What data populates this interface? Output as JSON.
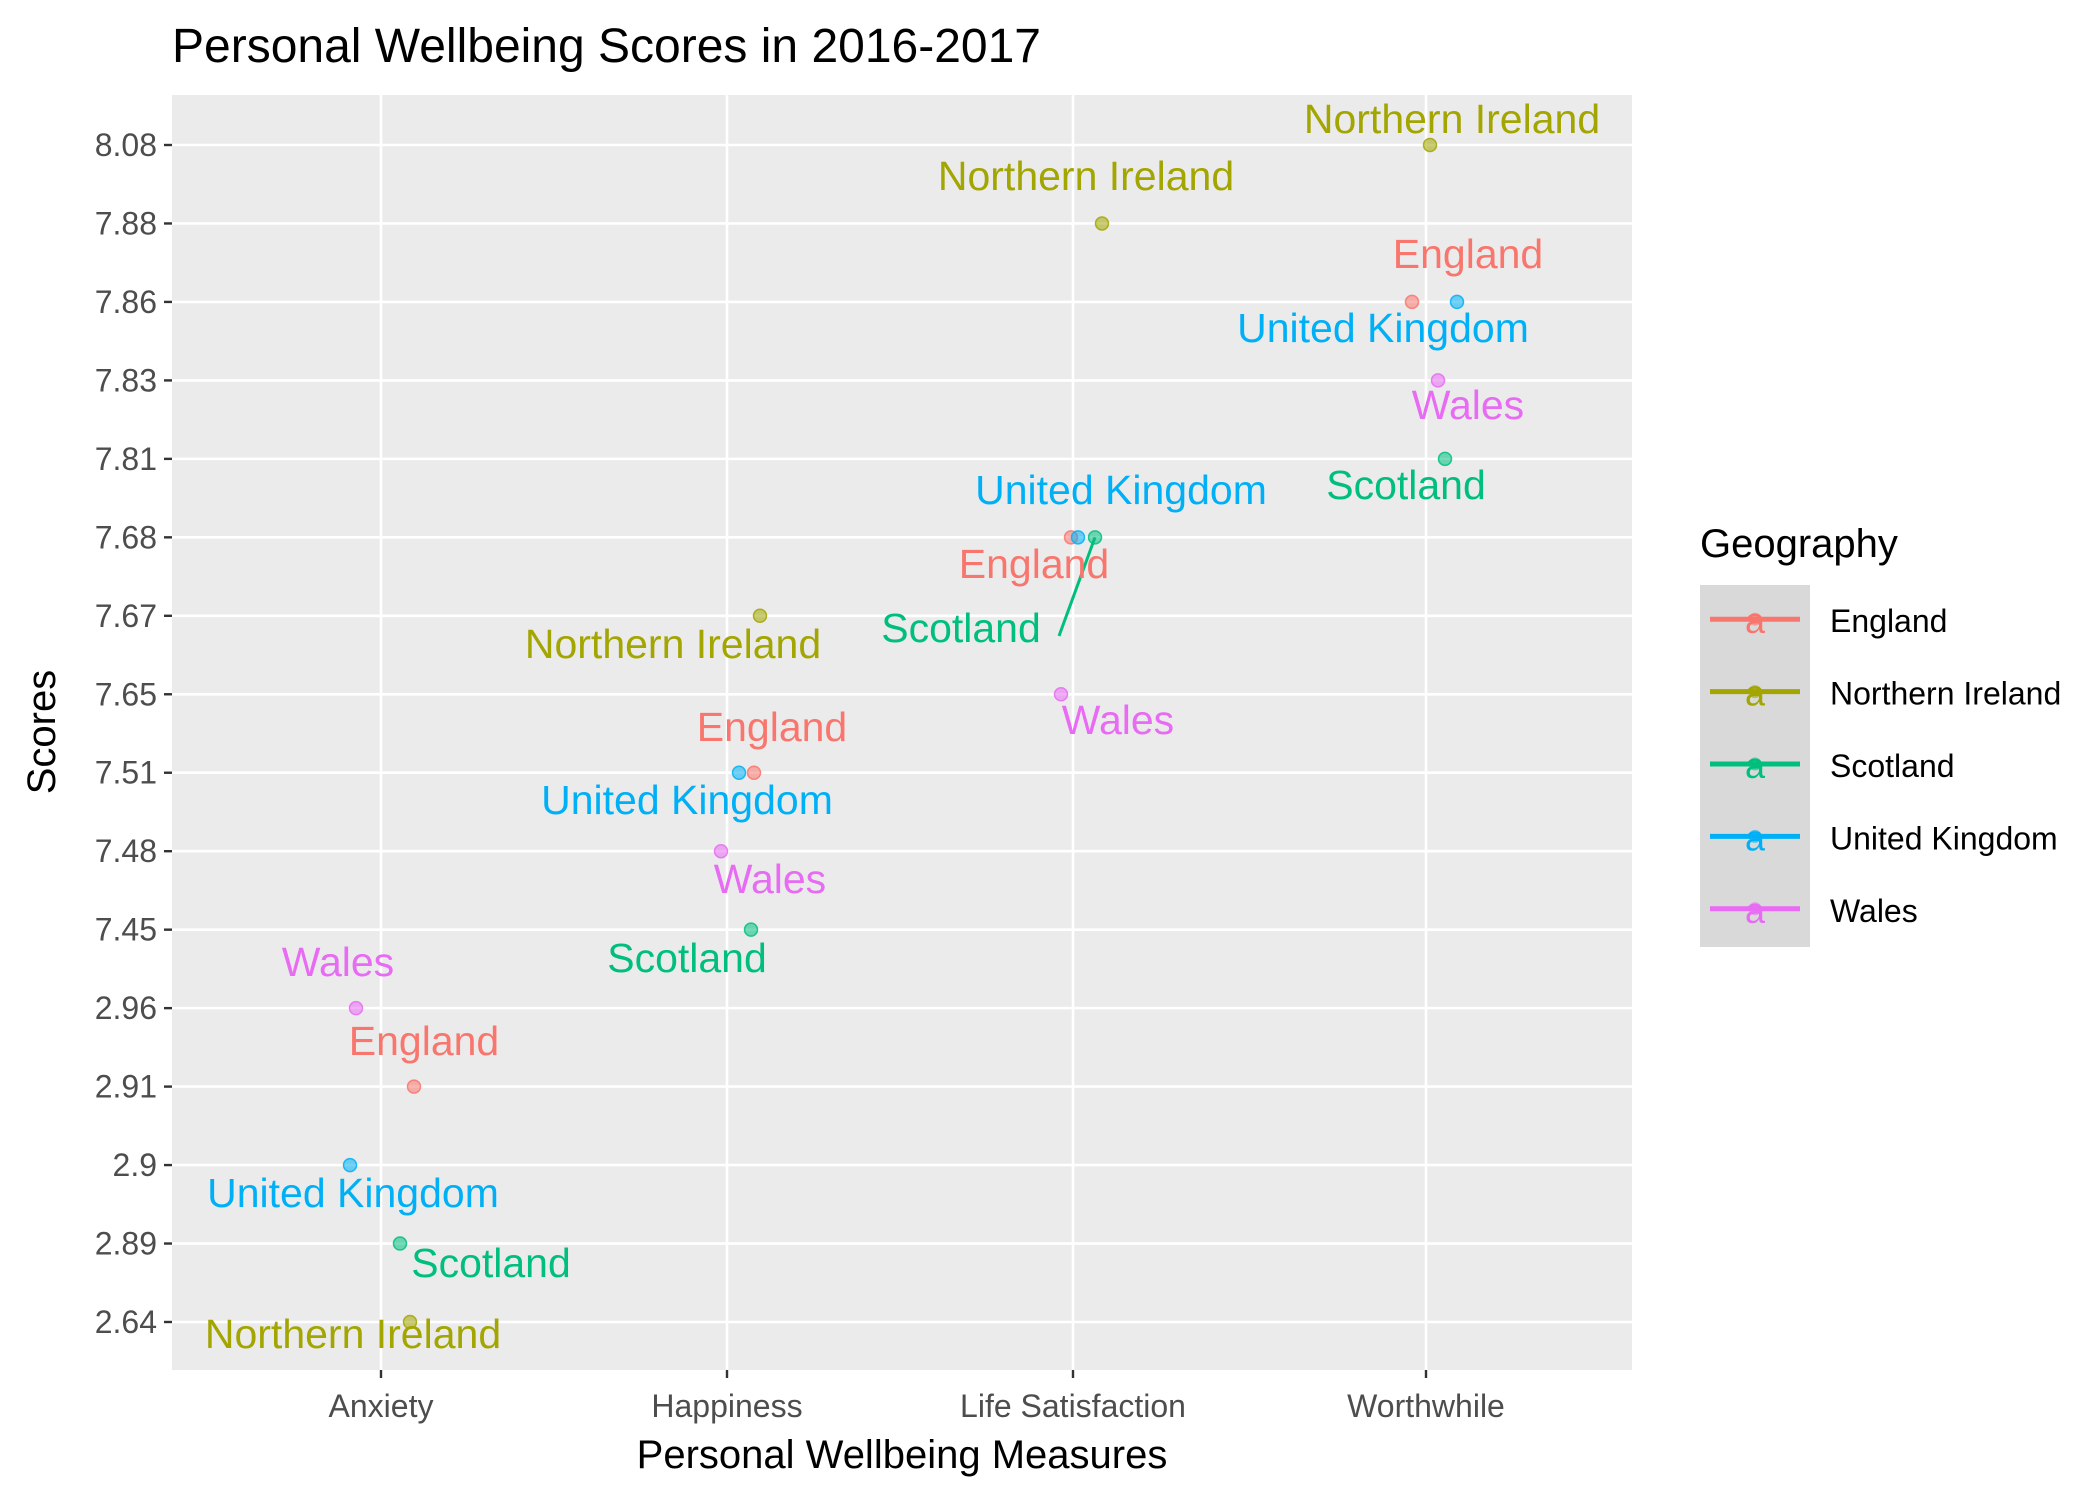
{
  "chart_data": {
    "type": "scatter",
    "title": "Personal Wellbeing Scores in 2016-2017",
    "xlabel": "Personal Wellbeing Measures",
    "ylabel": "Scores",
    "categories": [
      "Anxiety",
      "Happiness",
      "Life Satisfaction",
      "Worthwhile"
    ],
    "y_ticks": [
      "2.64",
      "2.89",
      "2.9",
      "2.91",
      "2.96",
      "7.45",
      "7.48",
      "7.51",
      "7.65",
      "7.67",
      "7.68",
      "7.81",
      "7.83",
      "7.86",
      "7.88",
      "8.08"
    ],
    "y_scale": "discrete",
    "grid": true,
    "legend": {
      "title": "Geography",
      "position": "right",
      "entries": [
        "England",
        "Northern Ireland",
        "Scotland",
        "United Kingdom",
        "Wales"
      ],
      "glyph": "a"
    },
    "colors": {
      "England": "#F8766D",
      "Northern Ireland": "#A3A500",
      "Scotland": "#00BF7D",
      "United Kingdom": "#00B0F6",
      "Wales": "#E76BF3"
    },
    "series": [
      {
        "name": "England",
        "values": [
          {
            "x": "Anxiety",
            "y": "2.91"
          },
          {
            "x": "Happiness",
            "y": "7.51"
          },
          {
            "x": "Life Satisfaction",
            "y": "7.68"
          },
          {
            "x": "Worthwhile",
            "y": "7.86"
          }
        ]
      },
      {
        "name": "Northern Ireland",
        "values": [
          {
            "x": "Anxiety",
            "y": "2.64"
          },
          {
            "x": "Happiness",
            "y": "7.67"
          },
          {
            "x": "Life Satisfaction",
            "y": "7.88"
          },
          {
            "x": "Worthwhile",
            "y": "8.08"
          }
        ]
      },
      {
        "name": "Scotland",
        "values": [
          {
            "x": "Anxiety",
            "y": "2.89"
          },
          {
            "x": "Happiness",
            "y": "7.45"
          },
          {
            "x": "Life Satisfaction",
            "y": "7.68"
          },
          {
            "x": "Worthwhile",
            "y": "7.81"
          }
        ]
      },
      {
        "name": "United Kingdom",
        "values": [
          {
            "x": "Anxiety",
            "y": "2.9"
          },
          {
            "x": "Happiness",
            "y": "7.51"
          },
          {
            "x": "Life Satisfaction",
            "y": "7.68"
          },
          {
            "x": "Worthwhile",
            "y": "7.86"
          }
        ]
      },
      {
        "name": "Wales",
        "values": [
          {
            "x": "Anxiety",
            "y": "2.96"
          },
          {
            "x": "Happiness",
            "y": "7.48"
          },
          {
            "x": "Life Satisfaction",
            "y": "7.65"
          },
          {
            "x": "Worthwhile",
            "y": "7.83"
          }
        ]
      }
    ]
  }
}
